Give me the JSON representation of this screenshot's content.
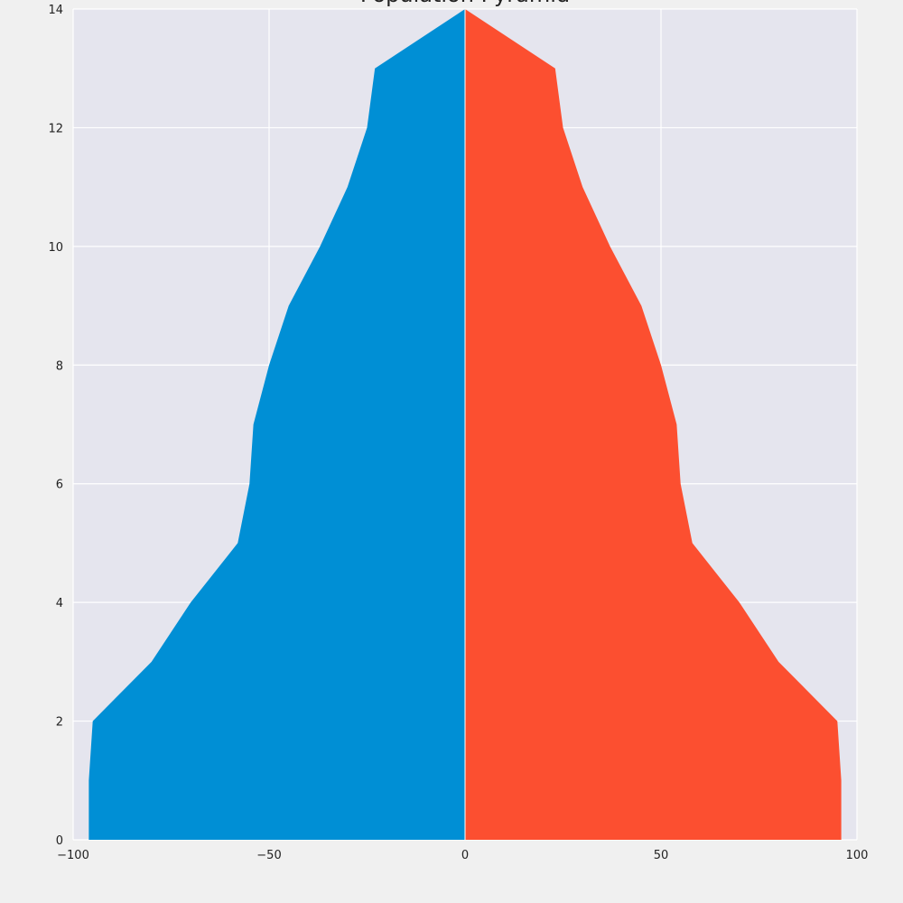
{
  "chart_data": {
    "type": "area",
    "title": "Population Pyramid",
    "xlabel": "",
    "ylabel": "",
    "xlim": [
      -100,
      100
    ],
    "ylim": [
      0,
      14
    ],
    "x_ticks": [
      -100,
      -50,
      0,
      50,
      100
    ],
    "x_tick_labels": [
      "−100",
      "−50",
      "0",
      "50",
      "100"
    ],
    "y_ticks": [
      0,
      2,
      4,
      6,
      8,
      10,
      12,
      14
    ],
    "y_tick_labels": [
      "0",
      "2",
      "4",
      "6",
      "8",
      "10",
      "12",
      "14"
    ],
    "grid": true,
    "legend": "none",
    "y": [
      0,
      1,
      2,
      3,
      4,
      5,
      6,
      7,
      8,
      9,
      10,
      11,
      12,
      13,
      14
    ],
    "series": [
      {
        "color": "#008fd5",
        "values": [
          -96,
          -96,
          -95,
          -80,
          -70,
          -58,
          -55,
          -54,
          -50,
          -45,
          -37,
          -30,
          -25,
          -23,
          0
        ]
      },
      {
        "color": "#fc4f30",
        "values": [
          96,
          96,
          95,
          80,
          70,
          58,
          55,
          54,
          50,
          45,
          37,
          30,
          25,
          23,
          0
        ]
      }
    ],
    "colors": {
      "plot_bg": "#e5e5ee",
      "fig_bg": "#f0f0f0",
      "grid": "#ffffff"
    }
  }
}
